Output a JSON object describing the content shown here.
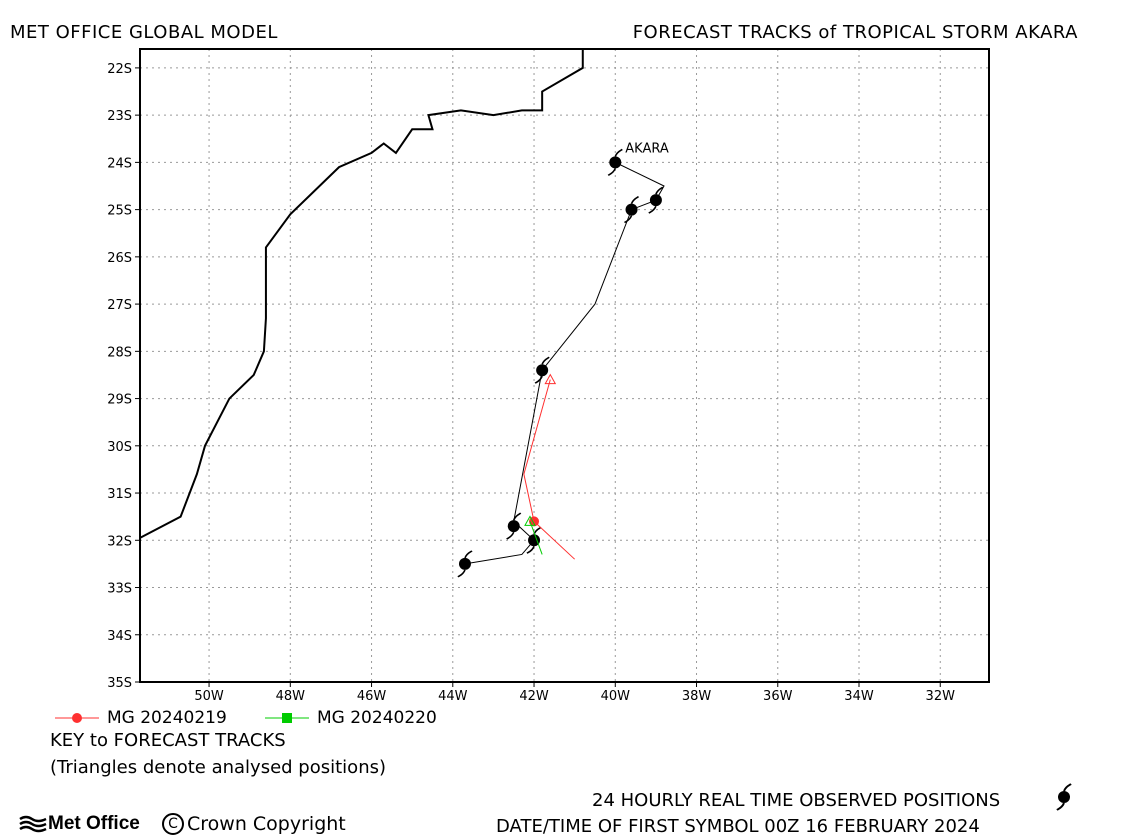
{
  "header": {
    "left_title": "MET OFFICE GLOBAL MODEL",
    "right_title": "FORECAST TRACKS of TROPICAL STORM AKARA"
  },
  "map": {
    "lon_ticks": [
      "50W",
      "48W",
      "46W",
      "44W",
      "42W",
      "40W",
      "38W",
      "36W",
      "34W",
      "32W"
    ],
    "lat_ticks": [
      "22S",
      "23S",
      "24S",
      "25S",
      "26S",
      "27S",
      "28S",
      "29S",
      "30S",
      "31S",
      "32S",
      "33S",
      "34S",
      "35S"
    ],
    "lon_range": [
      -51.7,
      -30.8
    ],
    "lat_range": [
      -21.6,
      -35.0
    ],
    "grid": true,
    "storm_label": "AKARA",
    "coastline": [
      [
        -51.7,
        -31.95
      ],
      [
        -50.7,
        -31.5
      ],
      [
        -50.3,
        -30.6
      ],
      [
        -50.1,
        -30.0
      ],
      [
        -49.5,
        -29.0
      ],
      [
        -48.9,
        -28.5
      ],
      [
        -48.65,
        -28.0
      ],
      [
        -48.6,
        -27.3
      ],
      [
        -48.6,
        -26.8
      ],
      [
        -48.6,
        -25.8
      ],
      [
        -48.0,
        -25.1
      ],
      [
        -46.8,
        -24.1
      ],
      [
        -46.0,
        -23.8
      ],
      [
        -45.7,
        -23.6
      ],
      [
        -45.4,
        -23.8
      ],
      [
        -45.0,
        -23.3
      ],
      [
        -44.5,
        -23.3
      ],
      [
        -44.6,
        -23.0
      ],
      [
        -43.8,
        -22.9
      ],
      [
        -43.0,
        -23.0
      ],
      [
        -42.3,
        -22.9
      ],
      [
        -41.8,
        -22.9
      ],
      [
        -41.8,
        -22.5
      ],
      [
        -40.8,
        -22.0
      ],
      [
        -40.8,
        -21.6
      ]
    ],
    "observed_track": [
      [
        -40.0,
        -24.0
      ],
      [
        -38.8,
        -24.5
      ],
      [
        -39.0,
        -24.8
      ],
      [
        -39.6,
        -25.0
      ],
      [
        -40.5,
        -27.0
      ],
      [
        -41.8,
        -28.4
      ],
      [
        -42.5,
        -31.6
      ],
      [
        -42.0,
        -32.0
      ],
      [
        -42.3,
        -32.3
      ],
      [
        -43.7,
        -32.5
      ]
    ],
    "observed_positions": [
      [
        -40.0,
        -24.0
      ],
      [
        -39.0,
        -24.8
      ],
      [
        -39.6,
        -25.0
      ],
      [
        -41.8,
        -28.4
      ],
      [
        -42.5,
        -31.7
      ],
      [
        -42.0,
        -32.0
      ],
      [
        -43.7,
        -32.5
      ]
    ],
    "forecast_tracks": [
      {
        "name": "MG 20240219",
        "color": "#ff3030",
        "marker": "circle",
        "start_analysed": [
          -41.0,
          -32.4
        ],
        "points": [
          [
            -42.0,
            -31.6
          ],
          [
            -42.25,
            -30.6
          ],
          [
            -41.6,
            -28.6
          ]
        ],
        "end_triangle": [
          -41.6,
          -28.6
        ]
      },
      {
        "name": "MG 20240220",
        "color": "#00cc00",
        "marker": "square",
        "start_analysed": [
          -41.8,
          -32.3
        ],
        "points": [
          [
            -42.1,
            -31.6
          ]
        ],
        "end_triangle": [
          -42.1,
          -31.6
        ]
      }
    ]
  },
  "legend": {
    "item1": "MG 20240219",
    "item2": "MG 20240220",
    "key_title": "KEY to FORECAST TRACKS",
    "key_note": "(Triangles denote analysed positions)"
  },
  "footer": {
    "observed_text": "24 HOURLY REAL TIME OBSERVED POSITIONS",
    "datetime_text": "DATE/TIME OF FIRST SYMBOL 00Z 16 FEBRUARY 2024",
    "logo_text": "Met Office",
    "copyright_text": "Crown Copyright"
  }
}
